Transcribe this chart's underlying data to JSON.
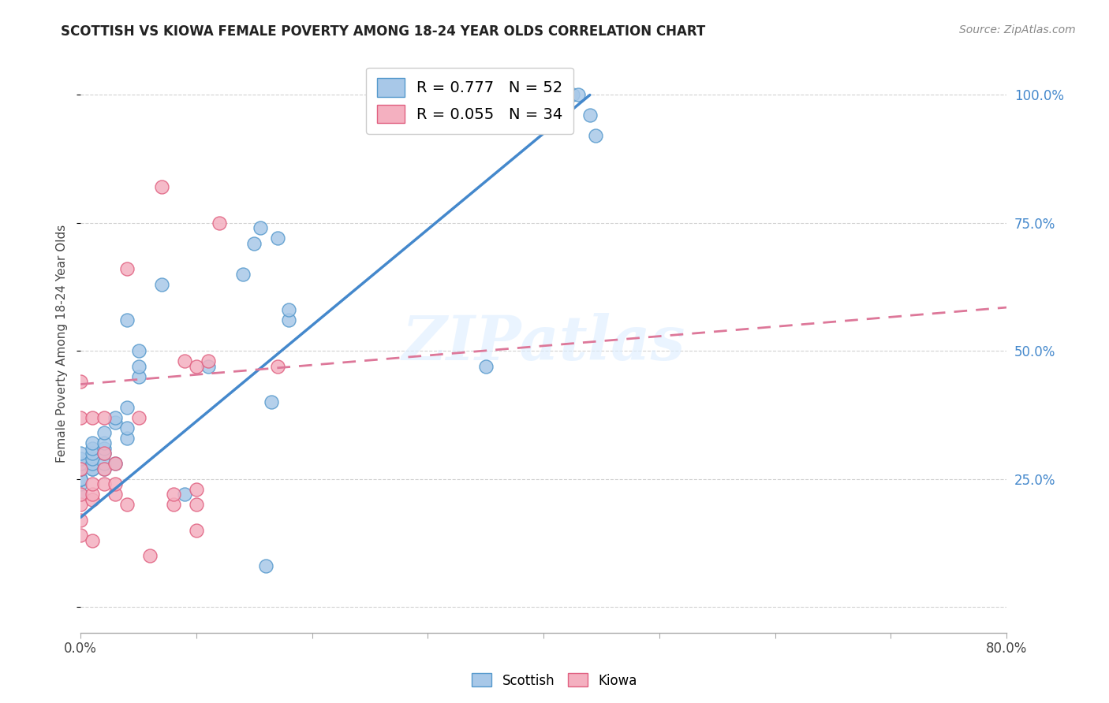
{
  "title": "SCOTTISH VS KIOWA FEMALE POVERTY AMONG 18-24 YEAR OLDS CORRELATION CHART",
  "source": "Source: ZipAtlas.com",
  "ylabel": "Female Poverty Among 18-24 Year Olds",
  "xlim": [
    0.0,
    0.8
  ],
  "ylim": [
    -0.05,
    1.08
  ],
  "scottish_R": 0.777,
  "scottish_N": 52,
  "kiowa_R": 0.055,
  "kiowa_N": 34,
  "scottish_color": "#a8c8e8",
  "kiowa_color": "#f4b0c0",
  "scottish_edge_color": "#5599cc",
  "kiowa_edge_color": "#e06080",
  "scottish_line_color": "#4488cc",
  "kiowa_line_color": "#dd7799",
  "watermark": "ZIPatlas",
  "scottish_x": [
    0.0,
    0.0,
    0.0,
    0.0,
    0.0,
    0.0,
    0.0,
    0.0,
    0.0,
    0.0,
    0.0,
    0.0,
    0.01,
    0.01,
    0.01,
    0.01,
    0.01,
    0.01,
    0.01,
    0.02,
    0.02,
    0.02,
    0.02,
    0.02,
    0.02,
    0.03,
    0.03,
    0.03,
    0.04,
    0.04,
    0.04,
    0.04,
    0.05,
    0.05,
    0.05,
    0.07,
    0.09,
    0.11,
    0.14,
    0.15,
    0.155,
    0.16,
    0.165,
    0.17,
    0.18,
    0.18,
    0.35,
    0.42,
    0.425,
    0.43,
    0.44,
    0.445
  ],
  "scottish_y": [
    0.22,
    0.24,
    0.25,
    0.25,
    0.25,
    0.27,
    0.27,
    0.27,
    0.28,
    0.28,
    0.29,
    0.3,
    0.27,
    0.27,
    0.28,
    0.29,
    0.3,
    0.31,
    0.32,
    0.27,
    0.28,
    0.3,
    0.31,
    0.32,
    0.34,
    0.28,
    0.36,
    0.37,
    0.33,
    0.35,
    0.39,
    0.56,
    0.45,
    0.47,
    0.5,
    0.63,
    0.22,
    0.47,
    0.65,
    0.71,
    0.74,
    0.08,
    0.4,
    0.72,
    0.56,
    0.58,
    0.47,
    1.0,
    1.0,
    1.0,
    0.96,
    0.92
  ],
  "kiowa_x": [
    0.0,
    0.0,
    0.0,
    0.0,
    0.0,
    0.0,
    0.0,
    0.01,
    0.01,
    0.01,
    0.01,
    0.01,
    0.02,
    0.02,
    0.02,
    0.02,
    0.03,
    0.03,
    0.03,
    0.04,
    0.04,
    0.05,
    0.06,
    0.07,
    0.08,
    0.08,
    0.09,
    0.1,
    0.1,
    0.1,
    0.1,
    0.11,
    0.12,
    0.17
  ],
  "kiowa_y": [
    0.14,
    0.17,
    0.2,
    0.22,
    0.27,
    0.37,
    0.44,
    0.13,
    0.21,
    0.22,
    0.24,
    0.37,
    0.24,
    0.27,
    0.3,
    0.37,
    0.22,
    0.24,
    0.28,
    0.2,
    0.66,
    0.37,
    0.1,
    0.82,
    0.2,
    0.22,
    0.48,
    0.15,
    0.2,
    0.23,
    0.47,
    0.48,
    0.75,
    0.47
  ],
  "scottish_line_x0": 0.0,
  "scottish_line_y0": 0.175,
  "scottish_line_x1": 0.44,
  "scottish_line_y1": 1.0,
  "kiowa_line_x0": 0.0,
  "kiowa_line_y0": 0.435,
  "kiowa_line_x1": 0.8,
  "kiowa_line_y1": 0.585
}
